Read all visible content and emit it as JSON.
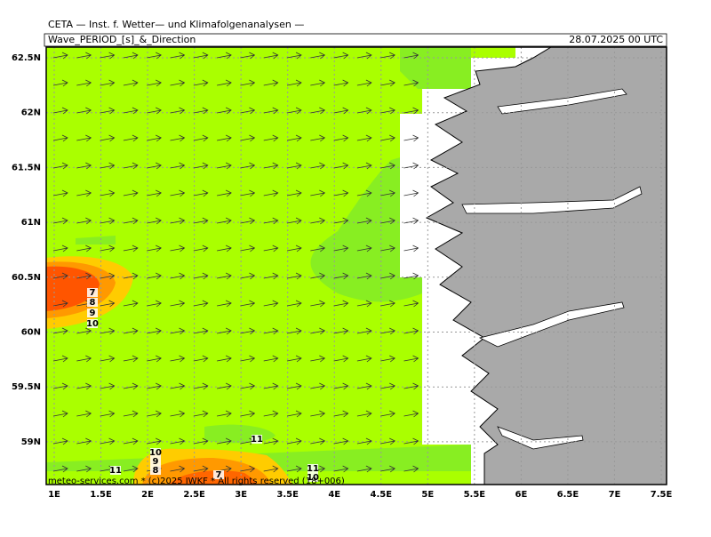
{
  "header": {
    "title": "CETA — Inst. f. Wetter— und Klimafolgenanalysen —",
    "subtitle": "Wave_PERIOD_[s]_&_Direction",
    "date": "28.07.2025 00 UTC"
  },
  "map": {
    "x_labels": [
      "1E",
      "1.5E",
      "2E",
      "2.5E",
      "3E",
      "3.5E",
      "4E",
      "4.5E",
      "5E",
      "5.5E",
      "6E",
      "6.5E",
      "7E",
      "7.5E"
    ],
    "y_labels": [
      "62.5N",
      "62N",
      "61.5N",
      "61N",
      "60.5N",
      "60N",
      "59.5N",
      "59N"
    ],
    "contour_labels": [
      "7",
      "8",
      "9",
      "10",
      "10",
      "9",
      "8",
      "7",
      "11",
      "11",
      "11",
      "10"
    ],
    "footer": "meteo-services.com * (c)2025 IWKF * All rights reserved (18+006)"
  }
}
